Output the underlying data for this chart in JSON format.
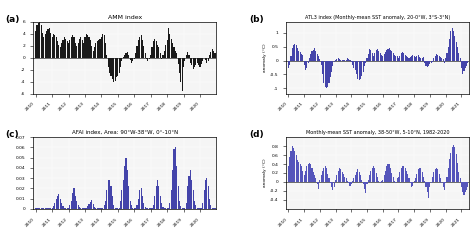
{
  "title_a": "AMM index",
  "title_b": "ATL3 index (Monthly-mean SST anomaly, 20-0°W, 3°S-3°N)",
  "title_c": "AFAI index, Area: 90°W-38°W, 0°-10°N",
  "title_d": "Monthly-mean SST anomaly, 38-50°W, 5-10°N, 1982-2020",
  "label_a": "(a)",
  "label_b": "(b)",
  "label_c": "(c)",
  "label_d": "(d)",
  "ylabel_b": "anomaly (°C)",
  "ylabel_d": "anomaly (°C)",
  "bar_color_a": "#1a1a1a",
  "bar_color_b": "#4444aa",
  "bar_color_c": "#4444aa",
  "bar_color_d": "#5555bb",
  "ylim_a": [
    -6,
    6
  ],
  "ylim_b": [
    -1.2,
    1.4
  ],
  "ylim_c": [
    0,
    0.07
  ],
  "ylim_d": [
    -0.6,
    1.0
  ],
  "yticks_a": [
    -6,
    -4,
    -2,
    0,
    2,
    4,
    6
  ],
  "yticks_b": [
    -1.0,
    -0.5,
    0.0,
    0.5,
    1.0
  ],
  "yticks_c": [
    0,
    0.01,
    0.02,
    0.03,
    0.04,
    0.05,
    0.06,
    0.07
  ],
  "yticks_d": [
    -0.4,
    -0.2,
    0.0,
    0.2,
    0.4,
    0.6,
    0.8
  ],
  "xticks_a": [
    2010,
    2011,
    2012,
    2013,
    2014,
    2015,
    2016,
    2017,
    2018,
    2019,
    2020
  ],
  "xticks_b": [
    2010,
    2011,
    2012,
    2013,
    2014,
    2015,
    2016,
    2017,
    2018,
    2019,
    2020,
    2021
  ],
  "xticks_c": [
    2010,
    2011,
    2012,
    2013,
    2014,
    2015,
    2016,
    2017,
    2018,
    2019,
    2020
  ],
  "xticks_d": [
    2010,
    2011,
    2012,
    2013,
    2014,
    2015,
    2016,
    2017,
    2018,
    2019,
    2020,
    2021
  ],
  "amm_values": [
    4.5,
    5.5,
    5.8,
    6.5,
    5.5,
    4.2,
    3.5,
    4.0,
    4.5,
    4.8,
    5.0,
    4.2,
    3.5,
    4.0,
    3.8,
    3.5,
    2.8,
    2.2,
    1.8,
    2.5,
    3.0,
    3.5,
    3.2,
    2.8,
    2.5,
    3.0,
    3.5,
    3.8,
    3.5,
    2.5,
    2.0,
    2.5,
    3.2,
    3.5,
    3.0,
    2.5,
    3.5,
    4.0,
    3.8,
    3.5,
    3.0,
    2.0,
    1.2,
    1.8,
    2.5,
    2.8,
    3.0,
    3.2,
    3.5,
    4.0,
    3.8,
    2.5,
    0.5,
    -1.5,
    -2.5,
    -3.0,
    -3.5,
    -4.0,
    -3.8,
    -3.2,
    -3.0,
    -2.5,
    -1.5,
    -0.5,
    0.2,
    0.5,
    0.8,
    1.0,
    0.5,
    -0.3,
    -0.8,
    -0.5,
    -0.2,
    0.8,
    2.0,
    3.0,
    3.5,
    3.8,
    3.0,
    2.0,
    0.8,
    -0.2,
    -0.5,
    -0.2,
    0.5,
    1.8,
    2.8,
    3.2,
    2.8,
    2.2,
    1.8,
    0.8,
    -0.2,
    0.5,
    1.2,
    2.2,
    3.0,
    5.0,
    4.0,
    3.2,
    2.5,
    1.8,
    1.2,
    0.8,
    -1.0,
    -2.5,
    -4.0,
    -5.5,
    -1.5,
    -0.5,
    0.5,
    1.0,
    0.5,
    -0.8,
    -1.2,
    -1.8,
    -1.5,
    -1.2,
    -0.8,
    -1.2,
    -1.5,
    -1.0,
    -0.5,
    0.0,
    -0.3,
    -0.8,
    -0.5,
    0.5,
    1.0,
    1.5,
    1.2,
    0.8,
    0.2,
    0.8,
    1.2,
    1.8,
    2.2,
    2.8,
    3.2,
    3.0
  ],
  "atl3_values": [
    -0.25,
    -0.15,
    0.15,
    0.45,
    0.55,
    0.6,
    0.55,
    0.45,
    0.35,
    0.3,
    0.25,
    0.2,
    -0.15,
    -0.35,
    -0.25,
    -0.1,
    0.1,
    0.25,
    0.35,
    0.4,
    0.45,
    0.35,
    0.25,
    0.15,
    0.05,
    -0.15,
    -0.5,
    -0.8,
    -0.95,
    -1.0,
    -0.95,
    -0.8,
    -0.6,
    -0.4,
    -0.2,
    -0.05,
    0.02,
    0.05,
    0.08,
    0.05,
    0.02,
    0.01,
    0.01,
    0.02,
    0.04,
    0.08,
    0.05,
    0.02,
    -0.05,
    -0.15,
    -0.25,
    -0.35,
    -0.5,
    -0.65,
    -0.7,
    -0.65,
    -0.55,
    -0.4,
    -0.2,
    -0.08,
    0.08,
    0.25,
    0.42,
    0.38,
    0.28,
    0.18,
    0.28,
    0.38,
    0.42,
    0.35,
    0.28,
    0.22,
    0.18,
    0.25,
    0.32,
    0.38,
    0.42,
    0.45,
    0.4,
    0.35,
    0.28,
    0.22,
    0.18,
    0.15,
    0.08,
    0.18,
    0.28,
    0.32,
    0.28,
    0.22,
    0.18,
    0.12,
    0.08,
    0.12,
    0.18,
    0.22,
    0.18,
    0.12,
    0.18,
    0.22,
    0.12,
    0.08,
    0.08,
    0.12,
    -0.08,
    -0.18,
    -0.22,
    -0.18,
    -0.12,
    -0.08,
    -0.05,
    0.08,
    0.18,
    0.25,
    0.22,
    0.18,
    0.12,
    0.08,
    0.05,
    -0.08,
    0.08,
    0.28,
    0.48,
    0.78,
    1.08,
    1.18,
    1.08,
    0.88,
    0.68,
    0.48,
    0.28,
    0.08,
    -0.28,
    -0.48,
    -0.38,
    -0.28,
    -0.18,
    -0.08,
    0.01,
    0.04,
    -0.04,
    -0.12,
    -0.18,
    -0.28,
    -0.28,
    -0.28,
    -0.18,
    -0.08,
    0.01,
    0.04,
    0.04,
    0.01
  ],
  "afai_values": [
    0.0005,
    0.0005,
    0.0005,
    0.0005,
    0.0005,
    0.0005,
    0.0005,
    0.0005,
    0.0005,
    0.0005,
    0.0005,
    0.0005,
    0.001,
    0.003,
    0.006,
    0.01,
    0.013,
    0.015,
    0.01,
    0.006,
    0.003,
    0.001,
    0.0005,
    0.0005,
    0.001,
    0.004,
    0.008,
    0.016,
    0.02,
    0.013,
    0.008,
    0.004,
    0.002,
    0.001,
    0.0005,
    0.0005,
    0.0005,
    0.001,
    0.003,
    0.005,
    0.007,
    0.009,
    0.005,
    0.002,
    0.001,
    0.0005,
    0.0005,
    0.0005,
    0.0005,
    0.001,
    0.004,
    0.008,
    0.018,
    0.028,
    0.028,
    0.022,
    0.013,
    0.004,
    0.001,
    0.0005,
    0.0005,
    0.001,
    0.008,
    0.018,
    0.028,
    0.042,
    0.05,
    0.038,
    0.022,
    0.008,
    0.004,
    0.001,
    0.0005,
    0.001,
    0.004,
    0.01,
    0.018,
    0.02,
    0.013,
    0.006,
    0.002,
    0.001,
    0.0005,
    0.0005,
    0.0005,
    0.001,
    0.004,
    0.013,
    0.022,
    0.028,
    0.022,
    0.013,
    0.006,
    0.002,
    0.001,
    0.0005,
    0.0005,
    0.001,
    0.006,
    0.018,
    0.038,
    0.058,
    0.06,
    0.042,
    0.022,
    0.008,
    0.003,
    0.001,
    0.0005,
    0.001,
    0.006,
    0.022,
    0.032,
    0.038,
    0.028,
    0.018,
    0.008,
    0.004,
    0.001,
    0.0005,
    0.0005,
    0.001,
    0.006,
    0.018,
    0.028,
    0.03,
    0.022,
    0.01,
    0.004,
    0.001,
    0.0005,
    0.0005,
    0.0005,
    0.001,
    0.008,
    0.028,
    0.058,
    0.066,
    0.052,
    0.028,
    0.008,
    0.002,
    0.0005,
    0.0005,
    0.0005,
    0.0005,
    0.0005,
    0.0005,
    0.0005,
    0.0005,
    0.0005,
    0.0005
  ],
  "sst_d_values": [
    0.35,
    0.55,
    0.7,
    0.8,
    0.75,
    0.7,
    0.6,
    0.5,
    0.45,
    0.4,
    0.35,
    0.25,
    0.15,
    0.25,
    0.35,
    0.4,
    0.42,
    0.4,
    0.32,
    0.22,
    0.15,
    0.08,
    -0.05,
    -0.15,
    0.05,
    0.15,
    0.25,
    0.32,
    0.35,
    0.3,
    0.18,
    0.08,
    -0.02,
    -0.12,
    -0.18,
    -0.12,
    0.05,
    0.15,
    0.25,
    0.3,
    0.28,
    0.22,
    0.18,
    0.12,
    0.08,
    0.02,
    -0.02,
    -0.08,
    -0.05,
    0.02,
    0.08,
    0.15,
    0.22,
    0.28,
    0.22,
    0.15,
    0.05,
    -0.05,
    -0.15,
    -0.25,
    -0.05,
    0.05,
    0.15,
    0.25,
    0.3,
    0.35,
    0.3,
    0.2,
    0.12,
    0.02,
    -0.02,
    0.02,
    0.05,
    0.15,
    0.25,
    0.35,
    0.4,
    0.4,
    0.3,
    0.2,
    0.12,
    0.02,
    -0.02,
    0.08,
    0.12,
    0.22,
    0.3,
    0.35,
    0.35,
    0.3,
    0.25,
    0.18,
    0.08,
    -0.02,
    -0.12,
    -0.08,
    0.02,
    0.08,
    0.18,
    0.28,
    0.32,
    0.3,
    0.22,
    0.12,
    0.02,
    -0.12,
    -0.22,
    -0.35,
    -0.12,
    -0.02,
    0.12,
    0.22,
    0.28,
    0.3,
    0.28,
    0.18,
    0.08,
    -0.02,
    -0.12,
    -0.18,
    -0.02,
    0.12,
    0.32,
    0.52,
    0.65,
    0.78,
    0.82,
    0.78,
    0.62,
    0.42,
    0.22,
    0.08,
    -0.12,
    -0.22,
    -0.28,
    -0.22,
    -0.18,
    -0.12,
    -0.05,
    0.02,
    0.08,
    0.02,
    -0.12,
    -0.22,
    -0.18,
    -0.22,
    -0.18,
    -0.12,
    -0.05,
    0.0,
    0.02,
    0.02
  ]
}
